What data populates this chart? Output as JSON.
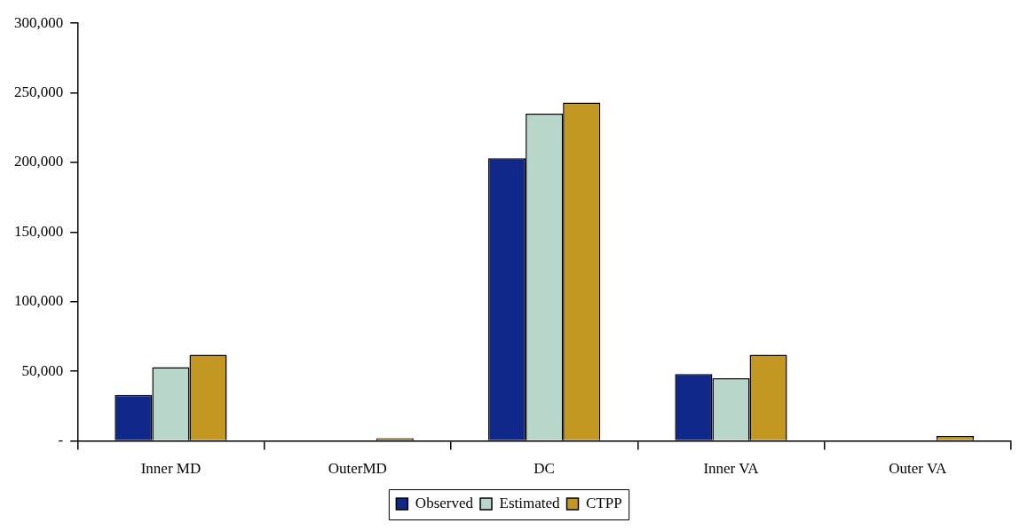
{
  "chart_data": {
    "type": "bar",
    "categories": [
      "Inner MD",
      "OuterMD",
      "DC",
      "Inner VA",
      "Outer VA"
    ],
    "series": [
      {
        "name": "Observed",
        "color": "#10288a",
        "values": [
          33000,
          500,
          203000,
          48000,
          600
        ]
      },
      {
        "name": "Estimated",
        "color": "#b9d6cb",
        "values": [
          53000,
          null,
          235000,
          45000,
          null
        ]
      },
      {
        "name": "CTPP",
        "color": "#c29722",
        "values": [
          62000,
          2000,
          243000,
          62000,
          3600
        ]
      }
    ],
    "ylim": [
      0,
      300000
    ],
    "yticks": [
      {
        "value": 0,
        "label": "-"
      },
      {
        "value": 50000,
        "label": "50,000"
      },
      {
        "value": 100000,
        "label": "100,000"
      },
      {
        "value": 150000,
        "label": "150,000"
      },
      {
        "value": 200000,
        "label": "200,000"
      },
      {
        "value": 250000,
        "label": "250,000"
      },
      {
        "value": 300000,
        "label": "300,000"
      }
    ],
    "grid": false,
    "legend": "bottom"
  }
}
